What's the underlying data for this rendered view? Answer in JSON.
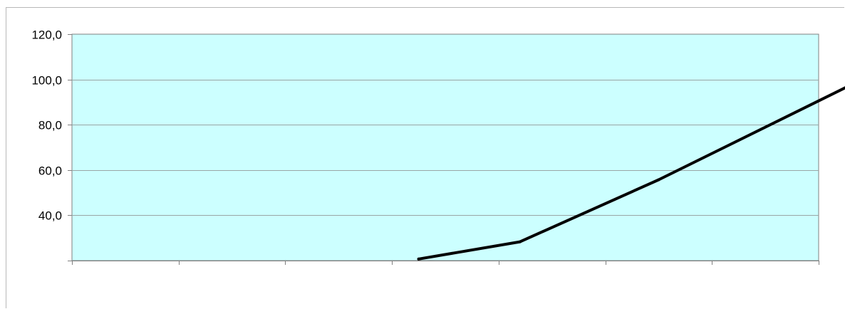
{
  "chart_data": {
    "type": "line",
    "title": "",
    "xlabel": "",
    "ylabel": "",
    "x_categories": [
      "",
      "",
      "",
      "",
      "",
      "",
      ""
    ],
    "y_range": [
      20,
      120
    ],
    "y_tick_values": [
      20,
      40,
      60,
      80,
      100,
      120
    ],
    "y_tick_labels": [
      "",
      "40,0",
      "60,0",
      "80,0",
      "100,0",
      "120,0"
    ],
    "grid": "horizontal",
    "legend": "none",
    "series": [
      {
        "points": [
          {
            "category_position": 3.25,
            "y": 20.7
          },
          {
            "category_position": 4.2,
            "y": 28.3
          },
          {
            "category_position": 5.5,
            "y": 55.7
          },
          {
            "category_position": 7.3,
            "y": 97.5
          }
        ],
        "color": "#000000"
      }
    ],
    "colors": {
      "plot_background": "#ccffff",
      "grid": "#9aa5a5",
      "axis": "#808080",
      "line": "#000000"
    }
  }
}
